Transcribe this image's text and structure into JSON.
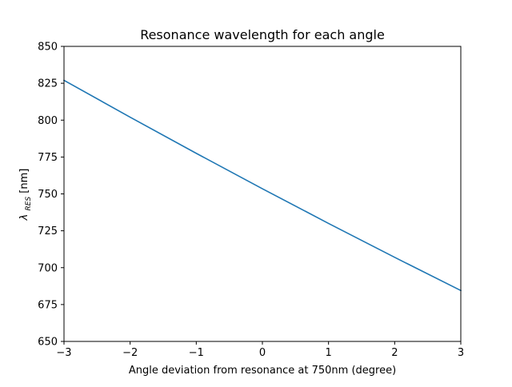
{
  "chart_data": {
    "type": "line",
    "title": "Resonance wavelength for each angle",
    "xlabel": "Angle deviation from resonance at 750nm (degree)",
    "ylabel": {
      "symbol": "λ",
      "subscript": "RES",
      "unit": " [nm]"
    },
    "xlim": [
      -3,
      3
    ],
    "ylim": [
      650,
      850
    ],
    "xticks": [
      -3,
      -2,
      -1,
      0,
      1,
      2,
      3
    ],
    "xtick_labels": [
      "−3",
      "−2",
      "−1",
      "0",
      "1",
      "2",
      "3"
    ],
    "yticks": [
      650,
      675,
      700,
      725,
      750,
      775,
      800,
      825,
      850
    ],
    "ytick_labels": [
      "650",
      "675",
      "700",
      "725",
      "750",
      "775",
      "800",
      "825",
      "850"
    ],
    "grid": false,
    "series": [
      {
        "color": "#1f77b4",
        "x": [
          -3,
          -2,
          -1,
          0,
          1,
          2,
          3
        ],
        "y": [
          827,
          802,
          777.5,
          753.5,
          730,
          707,
          684.5
        ]
      }
    ]
  }
}
